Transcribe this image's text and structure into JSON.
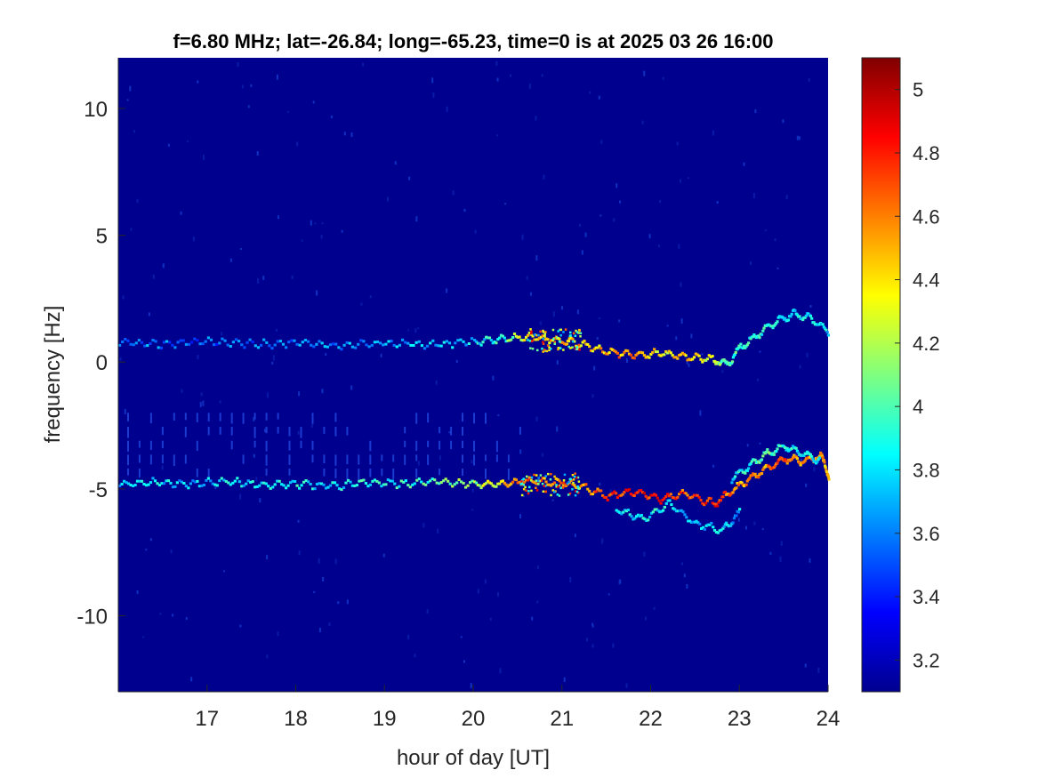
{
  "chart_data": {
    "type": "heatmap",
    "title": "f=6.80 MHz;  lat=-26.84; long=-65.23, time=0 is at 2025 03 26 16:00",
    "xlabel": "hour of day [UT]",
    "ylabel": "frequency [Hz]",
    "xlim": [
      16.0,
      24.0
    ],
    "ylim": [
      -13.0,
      12.0
    ],
    "x_ticks": [
      17,
      18,
      19,
      20,
      21,
      22,
      23,
      24
    ],
    "y_ticks": [
      -10,
      -5,
      0,
      5,
      10
    ],
    "colorbar": {
      "colormap": "jet",
      "clim": [
        3.1,
        5.1
      ],
      "ticks": [
        3.2,
        3.4,
        3.6,
        3.8,
        4.0,
        4.2,
        4.4,
        4.6,
        4.8,
        5.0
      ],
      "tick_labels": [
        "3.2",
        "3.4",
        "3.6",
        "3.8",
        "4",
        "4.2",
        "4.4",
        "4.6",
        "4.8",
        "5"
      ]
    },
    "background_value": 3.1,
    "grid": false,
    "series": [
      {
        "hour": [
          16.0,
          16.5,
          17.0,
          17.5,
          18.0,
          18.5,
          19.0,
          19.5,
          20.0,
          20.3,
          20.6,
          20.9,
          21.2,
          21.5,
          21.8,
          22.1,
          22.4,
          22.7,
          22.85,
          23.0,
          23.2,
          23.4,
          23.6,
          23.8,
          24.0
        ],
        "frequency": [
          0.8,
          0.7,
          0.8,
          0.7,
          0.75,
          0.65,
          0.75,
          0.7,
          0.8,
          0.9,
          1.0,
          0.9,
          0.7,
          0.4,
          0.3,
          0.35,
          0.2,
          0.1,
          -0.1,
          0.6,
          1.1,
          1.6,
          1.9,
          1.7,
          1.2
        ],
        "intensity": [
          3.6,
          3.6,
          3.55,
          3.6,
          3.6,
          3.65,
          3.7,
          3.75,
          3.8,
          3.9,
          4.4,
          4.5,
          4.4,
          4.5,
          4.6,
          4.3,
          4.5,
          4.2,
          4.0,
          3.9,
          3.9,
          3.9,
          3.85,
          3.8,
          3.8
        ]
      },
      {
        "hour": [
          16.0,
          16.4,
          16.8,
          17.2,
          17.6,
          18.0,
          18.4,
          18.8,
          19.2,
          19.6,
          20.0,
          20.3,
          20.6,
          20.9,
          21.2,
          21.5,
          21.8,
          22.1,
          22.4,
          22.7,
          22.9,
          23.1,
          23.3,
          23.5,
          23.7,
          23.9,
          24.0
        ],
        "frequency": [
          -4.8,
          -4.75,
          -4.8,
          -4.7,
          -4.85,
          -4.8,
          -4.9,
          -4.75,
          -4.8,
          -4.7,
          -4.8,
          -4.85,
          -4.7,
          -4.75,
          -4.9,
          -5.3,
          -5.1,
          -5.4,
          -5.2,
          -5.6,
          -5.1,
          -4.6,
          -4.2,
          -3.8,
          -3.9,
          -3.7,
          -4.5
        ],
        "intensity": [
          3.7,
          3.8,
          3.7,
          3.8,
          3.8,
          3.9,
          3.8,
          3.9,
          3.9,
          4.0,
          4.1,
          4.4,
          4.7,
          4.6,
          4.5,
          4.7,
          4.8,
          4.8,
          4.7,
          4.8,
          4.6,
          4.5,
          4.6,
          4.7,
          4.6,
          4.5,
          4.4
        ]
      },
      {
        "hour": [
          21.6,
          21.9,
          22.2,
          22.5,
          22.8,
          23.0
        ],
        "frequency": [
          -5.8,
          -6.2,
          -5.6,
          -6.4,
          -6.6,
          -5.9
        ],
        "intensity": [
          3.8,
          3.9,
          3.8,
          3.7,
          3.8,
          3.7
        ]
      },
      {
        "hour": [
          22.9,
          23.1,
          23.3,
          23.5,
          23.7,
          23.9
        ],
        "frequency": [
          -4.6,
          -4.1,
          -3.6,
          -3.3,
          -3.6,
          -3.9
        ],
        "intensity": [
          3.8,
          3.9,
          4.0,
          3.9,
          3.8,
          3.8
        ]
      }
    ]
  }
}
